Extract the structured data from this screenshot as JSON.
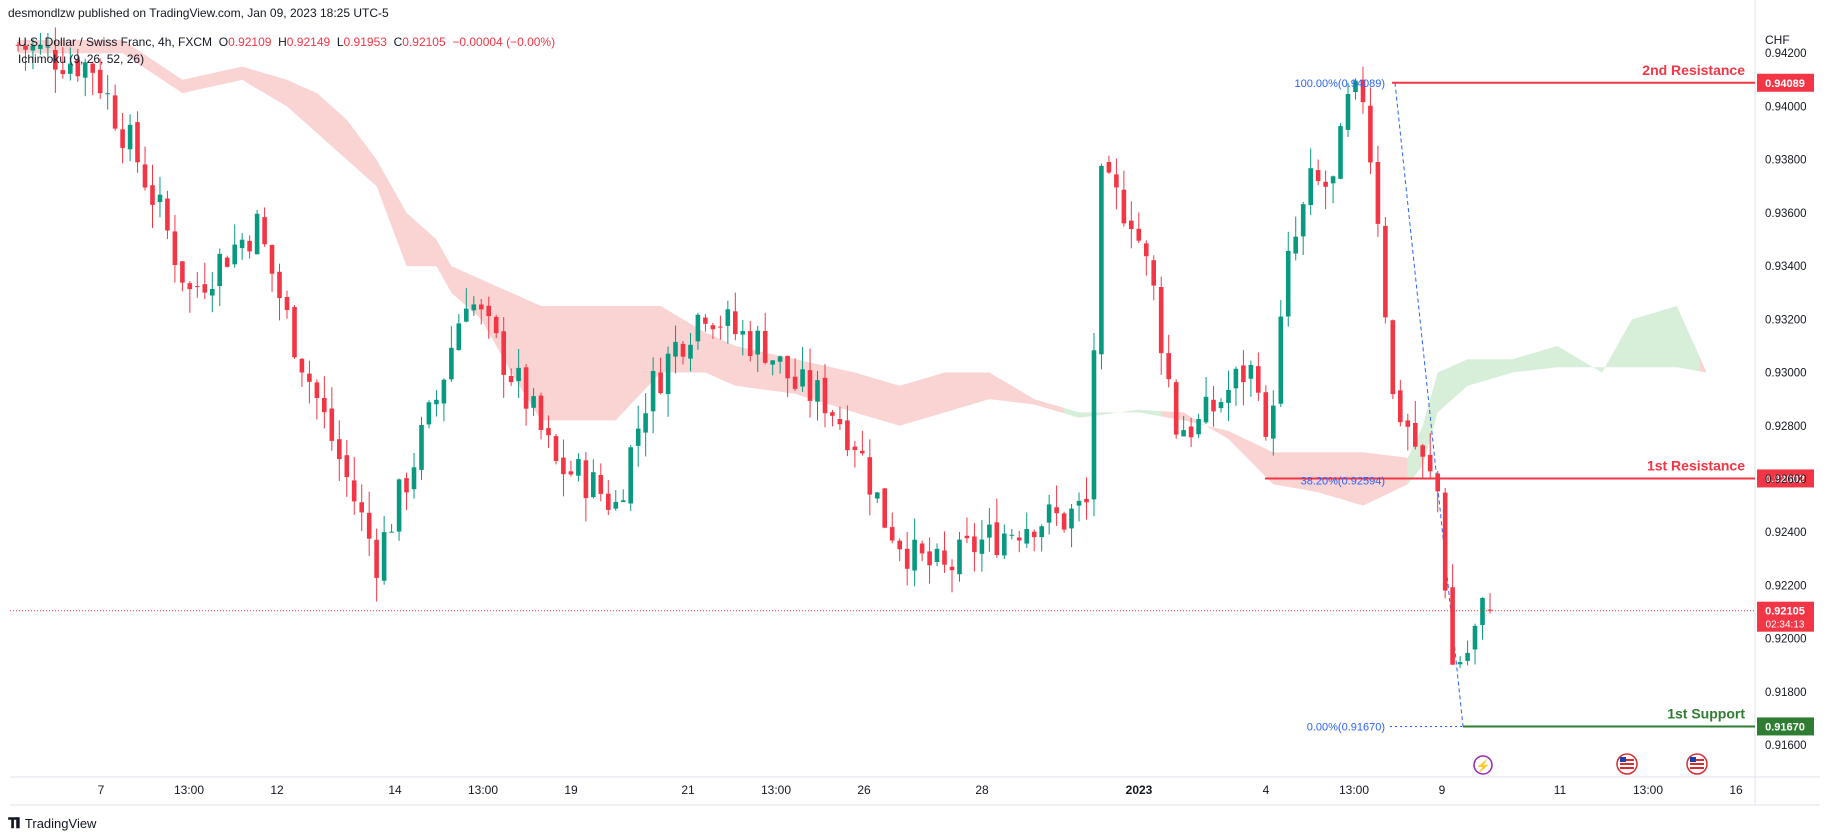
{
  "header": {
    "credit": "desmondlzw published on TradingView.com, Jan 09, 2023 18:25 UTC-5"
  },
  "legend": {
    "symbol": "U.S. Dollar / Swiss Franc, 4h, FXCM",
    "open_label": "O",
    "open": "0.92109",
    "high_label": "H",
    "high": "0.92149",
    "low_label": "L",
    "low": "0.91953",
    "close_label": "C",
    "close": "0.92105",
    "change": "−0.00004 (−0.00%)",
    "indicator": "Ichimoku (9, 26, 52, 26)"
  },
  "footer": {
    "brand": "TradingView"
  },
  "colors": {
    "up": "#089981",
    "down": "#f23645",
    "resistance": "#f23645",
    "support": "#2e7d32",
    "fib": "#2962ff",
    "cloud_bear": "#f8bcbc",
    "cloud_bull": "#c9e8cc"
  },
  "chart_data": {
    "type": "candlestick",
    "currency": "CHF",
    "ylim": [
      0.9148,
      0.944
    ],
    "y_ticks": [
      "0.94200",
      "0.94000",
      "0.93800",
      "0.93600",
      "0.93400",
      "0.93200",
      "0.93000",
      "0.92800",
      "0.92600",
      "0.92400",
      "0.92200",
      "0.92000",
      "0.91800",
      "0.91600"
    ],
    "x_ticks": [
      "7",
      "13:00",
      "12",
      "14",
      "13:00",
      "19",
      "21",
      "13:00",
      "26",
      "28",
      "2023",
      "4",
      "13:00",
      "9",
      "11",
      "13:00",
      "16"
    ],
    "x_ticks_bold": [
      "2023"
    ],
    "levels": [
      {
        "label": "2nd Resistance",
        "value": 0.94089,
        "tag": "0.94089",
        "kind": "resistance"
      },
      {
        "label": "1st Resistance",
        "value": 0.92602,
        "tag": "0.92602",
        "kind": "resistance"
      },
      {
        "label": "1st Support",
        "value": 0.9167,
        "tag": "0.91670",
        "kind": "support"
      }
    ],
    "fib_labels": [
      {
        "text": "100.00%(0.94089)",
        "value": 0.94089
      },
      {
        "text": "38.20%(0.92594)",
        "value": 0.92594
      },
      {
        "text": "0.00%(0.91670)",
        "value": 0.9167
      }
    ],
    "current_price": {
      "value": 0.92105,
      "tag": "0.92105",
      "countdown": "02:34:13"
    },
    "anchors": [
      [
        0,
        0.9423
      ],
      [
        10,
        0.9415
      ],
      [
        16,
        0.938
      ],
      [
        19,
        0.936
      ],
      [
        23,
        0.933
      ],
      [
        28,
        0.9345
      ],
      [
        32,
        0.9355
      ],
      [
        36,
        0.932
      ],
      [
        40,
        0.929
      ],
      [
        44,
        0.926
      ],
      [
        48,
        0.923
      ],
      [
        52,
        0.926
      ],
      [
        56,
        0.929
      ],
      [
        60,
        0.933
      ],
      [
        64,
        0.931
      ],
      [
        68,
        0.929
      ],
      [
        72,
        0.9265
      ],
      [
        76,
        0.926
      ],
      [
        80,
        0.925
      ],
      [
        84,
        0.929
      ],
      [
        88,
        0.931
      ],
      [
        92,
        0.9325
      ],
      [
        96,
        0.9315
      ],
      [
        100,
        0.931
      ],
      [
        104,
        0.9295
      ],
      [
        108,
        0.929
      ],
      [
        112,
        0.9275
      ],
      [
        116,
        0.9245
      ],
      [
        120,
        0.923
      ],
      [
        124,
        0.9225
      ],
      [
        128,
        0.9235
      ],
      [
        132,
        0.924
      ],
      [
        136,
        0.9245
      ],
      [
        140,
        0.9245
      ],
      [
        143,
        0.925
      ],
      [
        145,
        0.937
      ],
      [
        149,
        0.936
      ],
      [
        152,
        0.933
      ],
      [
        155,
        0.928
      ],
      [
        158,
        0.928
      ],
      [
        161,
        0.929
      ],
      [
        164,
        0.93
      ],
      [
        166,
        0.93
      ],
      [
        167,
        0.927
      ],
      [
        170,
        0.934
      ],
      [
        173,
        0.937
      ],
      [
        176,
        0.937
      ],
      [
        178,
        0.94
      ],
      [
        180,
        0.9405
      ],
      [
        182,
        0.936
      ],
      [
        184,
        0.929
      ],
      [
        186,
        0.928
      ],
      [
        188,
        0.9265
      ],
      [
        190,
        0.9255
      ],
      [
        192,
        0.919
      ],
      [
        194,
        0.9195
      ],
      [
        196,
        0.921
      ],
      [
        197,
        0.92105
      ]
    ],
    "kumo_top": [
      [
        0,
        0.9425
      ],
      [
        14,
        0.9425
      ],
      [
        22,
        0.941
      ],
      [
        30,
        0.9415
      ],
      [
        36,
        0.941
      ],
      [
        40,
        0.9405
      ],
      [
        44,
        0.9395
      ],
      [
        48,
        0.938
      ],
      [
        52,
        0.936
      ],
      [
        56,
        0.935
      ],
      [
        58,
        0.934
      ],
      [
        62,
        0.9335
      ],
      [
        66,
        0.933
      ],
      [
        70,
        0.9325
      ],
      [
        80,
        0.9325
      ],
      [
        86,
        0.9325
      ],
      [
        92,
        0.9315
      ],
      [
        96,
        0.931
      ],
      [
        104,
        0.9305
      ],
      [
        112,
        0.93
      ],
      [
        118,
        0.9295
      ],
      [
        124,
        0.93
      ],
      [
        130,
        0.93
      ],
      [
        136,
        0.929
      ],
      [
        142,
        0.9285
      ],
      [
        150,
        0.9285
      ],
      [
        156,
        0.9282
      ],
      [
        162,
        0.9278
      ],
      [
        168,
        0.927
      ],
      [
        174,
        0.927
      ],
      [
        180,
        0.927
      ],
      [
        186,
        0.9268
      ],
      [
        188,
        0.928
      ],
      [
        190,
        0.93
      ],
      [
        194,
        0.9305
      ],
      [
        200,
        0.9305
      ],
      [
        206,
        0.931
      ],
      [
        212,
        0.93
      ],
      [
        216,
        0.932
      ],
      [
        222,
        0.9325
      ],
      [
        226,
        0.93
      ],
      [
        232,
        0.9285
      ]
    ],
    "kumo_bottom": [
      [
        0,
        0.942
      ],
      [
        14,
        0.942
      ],
      [
        22,
        0.9405
      ],
      [
        30,
        0.941
      ],
      [
        36,
        0.94
      ],
      [
        40,
        0.939
      ],
      [
        44,
        0.938
      ],
      [
        48,
        0.937
      ],
      [
        52,
        0.934
      ],
      [
        56,
        0.934
      ],
      [
        58,
        0.933
      ],
      [
        62,
        0.932
      ],
      [
        66,
        0.93
      ],
      [
        70,
        0.9282
      ],
      [
        80,
        0.9282
      ],
      [
        86,
        0.93
      ],
      [
        92,
        0.93
      ],
      [
        96,
        0.9295
      ],
      [
        104,
        0.9292
      ],
      [
        112,
        0.9285
      ],
      [
        118,
        0.928
      ],
      [
        124,
        0.9285
      ],
      [
        130,
        0.929
      ],
      [
        136,
        0.9288
      ],
      [
        142,
        0.9283
      ],
      [
        150,
        0.9286
      ],
      [
        156,
        0.9285
      ],
      [
        162,
        0.9275
      ],
      [
        168,
        0.9258
      ],
      [
        174,
        0.9255
      ],
      [
        180,
        0.925
      ],
      [
        186,
        0.9258
      ],
      [
        188,
        0.9265
      ],
      [
        190,
        0.9285
      ],
      [
        194,
        0.9295
      ],
      [
        200,
        0.93
      ],
      [
        206,
        0.9302
      ],
      [
        212,
        0.9302
      ],
      [
        216,
        0.9302
      ],
      [
        222,
        0.9302
      ],
      [
        226,
        0.93
      ],
      [
        232,
        0.9285
      ]
    ],
    "kumo_bull_ranges": [
      [
        140,
        152
      ],
      [
        186,
        224
      ]
    ]
  }
}
